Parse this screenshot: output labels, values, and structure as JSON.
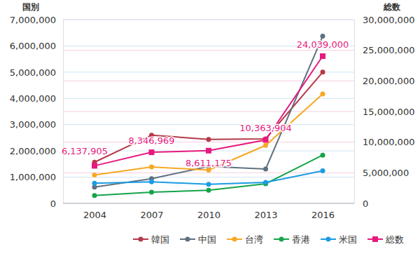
{
  "chart_data": {
    "type": "line",
    "y_label": "国別",
    "y2_label": "総数",
    "categories": [
      "2004",
      "2007",
      "2010",
      "2013",
      "2016"
    ],
    "ylim": [
      0,
      7000000
    ],
    "yticks": [
      0,
      {
        "value": 1000000,
        "label": "1,000,000"
      },
      {
        "value": 2000000,
        "label": "2,000,000"
      },
      {
        "value": 3000000,
        "label": "3,000,000"
      },
      {
        "value": 4000000,
        "label": "4,000,000"
      },
      {
        "value": 5000000,
        "label": "5,000,000"
      },
      {
        "value": 6000000,
        "label": "6,000,000"
      },
      {
        "value": 7000000,
        "label": "7,000,000"
      }
    ],
    "y2lim": [
      0,
      30000000
    ],
    "y2ticks": [
      0,
      {
        "value": 5000000,
        "label": "5,000,000"
      },
      {
        "value": 10000000,
        "label": "10,000,000"
      },
      {
        "value": 15000000,
        "label": "15,000,000"
      },
      {
        "value": 20000000,
        "label": "20,000,000"
      },
      {
        "value": 25000000,
        "label": "25,000,000"
      },
      {
        "value": 30000000,
        "label": "30,000,000"
      }
    ],
    "grid": true,
    "legend": "bottom",
    "series": [
      {
        "name": "韓国",
        "color": "#b5394a",
        "marker": "circle",
        "values": [
          1570000,
          2600000,
          2440000,
          2460000,
          5000000
        ]
      },
      {
        "name": "中国",
        "color": "#5f7080",
        "marker": "circle",
        "values": [
          620000,
          940000,
          1410000,
          1310000,
          6370000
        ]
      },
      {
        "name": "台湾",
        "color": "#f7a823",
        "marker": "circle",
        "values": [
          1080000,
          1390000,
          1270000,
          2210000,
          4170000
        ]
      },
      {
        "name": "香港",
        "color": "#17a34a",
        "marker": "circle",
        "values": [
          300000,
          430000,
          500000,
          750000,
          1840000
        ]
      },
      {
        "name": "米国",
        "color": "#1b9ce3",
        "marker": "circle",
        "values": [
          770000,
          820000,
          730000,
          800000,
          1240000
        ]
      },
      {
        "name": "総数",
        "color": "#e6197e",
        "marker": "square",
        "axis": "y2",
        "data_labels": true,
        "values": [
          6137905,
          8346969,
          8611175,
          10363904,
          24039000
        ],
        "value_labels": [
          "6,137,905",
          "8,346,969",
          "8,611,175",
          "10,363,904",
          "24,039,000"
        ]
      }
    ]
  }
}
